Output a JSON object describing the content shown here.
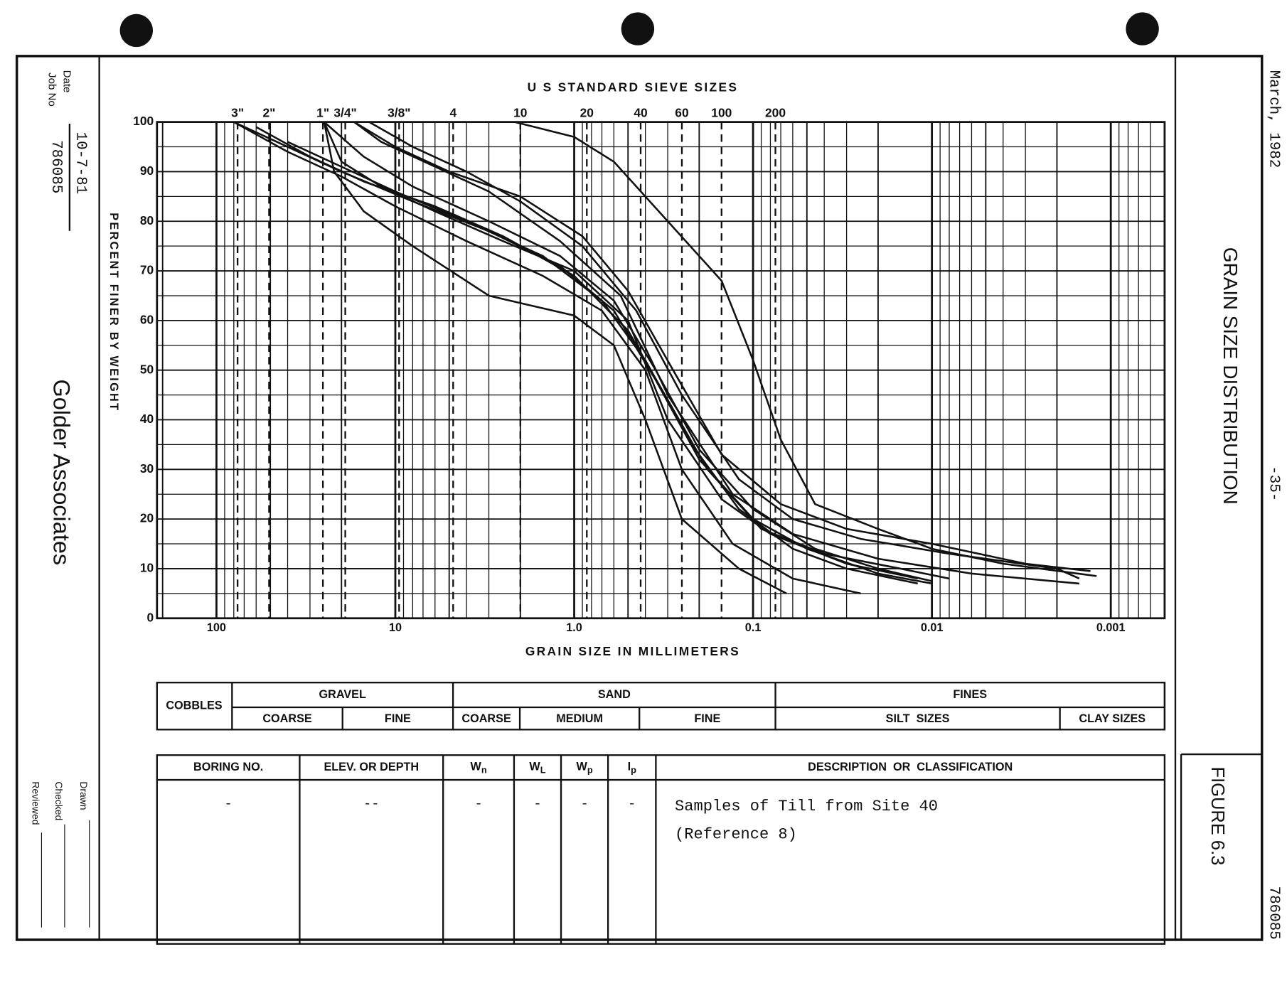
{
  "margin": {
    "date_stamp": "March, 1982",
    "page": "-35-",
    "number": "786085"
  },
  "sidebar": {
    "date_label": "Date",
    "date": "10-7-81",
    "job_label": "Job No",
    "job": "786085",
    "company": "Golder Associates",
    "drawn": "Drawn",
    "checked": "Checked",
    "reviewed": "Reviewed"
  },
  "figure": {
    "title": "GRAIN SIZE DISTRIBUTION",
    "number": "FIGURE 6.3"
  },
  "chart_data": {
    "type": "line",
    "title": "U S  STANDARD  SIEVE  SIZES",
    "x_label": "GRAIN SIZE IN MILLIMETERS",
    "y_label": "PERCENT FINER BY WEIGHT",
    "xscale": "log",
    "grid": true,
    "xlim": [
      215,
      0.0005
    ],
    "ylim": [
      0,
      100
    ],
    "xticks": [
      100,
      10,
      {
        "value": 1,
        "label": "1.0"
      },
      0.1,
      0.01,
      0.001
    ],
    "yticks": [
      0,
      10,
      20,
      30,
      40,
      50,
      60,
      70,
      80,
      90,
      100
    ],
    "sieve_ticks": [
      {
        "value": 76.2,
        "label": "3\""
      },
      {
        "value": 50.8,
        "label": "2\""
      },
      {
        "value": 25.4,
        "label": "1\""
      },
      {
        "value": 19.05,
        "label": "3/4\""
      },
      {
        "value": 9.525,
        "label": "3/8\""
      },
      {
        "value": 4.75,
        "label": "4"
      },
      {
        "value": 2.0,
        "label": "10"
      },
      {
        "value": 0.85,
        "label": "20"
      },
      {
        "value": 0.425,
        "label": "40"
      },
      {
        "value": 0.25,
        "label": "60"
      },
      {
        "value": 0.15,
        "label": "100"
      },
      {
        "value": 0.075,
        "label": "200"
      }
    ],
    "series": [
      {
        "color": "#111111",
        "x": [
          2.15,
          1.0,
          0.6,
          0.3,
          0.15,
          0.1,
          0.07,
          0.045,
          0.02,
          0.01,
          0.004,
          0.0012
        ],
        "values": [
          100,
          97,
          92,
          80,
          68,
          52,
          36,
          23,
          18,
          14,
          11,
          8.5
        ]
      },
      {
        "color": "#111111",
        "x": [
          80,
          40,
          20,
          10,
          4,
          1.5,
          0.7,
          0.4,
          0.25,
          0.13,
          0.06,
          0.025
        ],
        "values": [
          100,
          94,
          89,
          83,
          76,
          69,
          62,
          50,
          30,
          15,
          8,
          5
        ]
      },
      {
        "color": "#111111",
        "x": [
          25,
          22,
          15,
          8,
          3,
          1,
          0.6,
          0.4,
          0.25,
          0.12,
          0.065
        ],
        "values": [
          100,
          90,
          82,
          75,
          65,
          61,
          55,
          40,
          20,
          10,
          5
        ]
      },
      {
        "color": "#111111",
        "x": [
          17,
          12,
          6,
          3,
          1.2,
          0.55,
          0.3,
          0.13,
          0.06,
          0.02,
          0.006,
          0.0015
        ],
        "values": [
          100,
          96,
          91,
          86,
          76,
          65,
          45,
          25,
          17,
          12,
          9,
          7
        ]
      },
      {
        "color": "#111111",
        "x": [
          25,
          20,
          12,
          6,
          2.5,
          1,
          0.5,
          0.3,
          0.15,
          0.08,
          0.03,
          0.012
        ],
        "values": [
          100,
          92,
          87,
          82,
          76,
          70,
          60,
          40,
          24,
          17,
          11,
          8
        ]
      },
      {
        "color": "#111111",
        "x": [
          80,
          40,
          20,
          8,
          3,
          1.2,
          0.6,
          0.35,
          0.2,
          0.1,
          0.05,
          0.02,
          0.01
        ],
        "values": [
          100,
          95,
          90,
          84,
          78,
          71,
          62,
          48,
          32,
          20,
          14,
          9,
          7
        ]
      },
      {
        "color": "#111111",
        "x": [
          60,
          30,
          15,
          6,
          2.5,
          1,
          0.5,
          0.3,
          0.18,
          0.09,
          0.04,
          0.015,
          0.008
        ],
        "values": [
          99,
          93,
          88,
          83,
          77,
          69,
          58,
          44,
          30,
          18,
          13,
          10,
          8
        ]
      },
      {
        "color": "#111111",
        "x": [
          17,
          10,
          5,
          2,
          0.9,
          0.5,
          0.28,
          0.15,
          0.07,
          0.03,
          0.01,
          0.003,
          0.0013
        ],
        "values": [
          100,
          95,
          90,
          85,
          77,
          66,
          50,
          33,
          23,
          18,
          15,
          11,
          9.5
        ]
      },
      {
        "color": "#111111",
        "x": [
          25,
          15,
          8,
          3,
          1.2,
          0.6,
          0.35,
          0.2,
          0.1,
          0.045,
          0.02,
          0.01
        ],
        "values": [
          100,
          93,
          87,
          80,
          73,
          64,
          50,
          34,
          22,
          14,
          10,
          7.5
        ]
      },
      {
        "color": "#111111",
        "x": [
          14,
          8,
          4,
          2,
          0.9,
          0.45,
          0.25,
          0.12,
          0.06,
          0.025,
          0.008,
          0.002,
          0.0015
        ],
        "values": [
          100,
          95,
          90,
          84,
          75,
          62,
          45,
          28,
          20,
          16,
          13,
          10,
          8
        ]
      },
      {
        "color": "#111111",
        "x": [
          40,
          20,
          10,
          4,
          1.5,
          0.7,
          0.4,
          0.22,
          0.12,
          0.06,
          0.03,
          0.012
        ],
        "values": [
          96,
          91,
          86,
          80,
          73,
          64,
          52,
          35,
          22,
          14,
          10,
          7
        ]
      }
    ]
  },
  "classification": {
    "cobbles": "COBBLES",
    "groups": [
      {
        "label": "GRAVEL",
        "subs": [
          "COARSE",
          "FINE"
        ]
      },
      {
        "label": "SAND",
        "subs": [
          "COARSE",
          "MEDIUM",
          "FINE"
        ]
      },
      {
        "label": "FINES",
        "subs": [
          "SILT  SIZES",
          "CLAY SIZES"
        ]
      }
    ]
  },
  "table": {
    "headers": [
      "BORING NO.",
      "ELEV. OR DEPTH",
      {
        "base": "W",
        "sub": "n"
      },
      {
        "base": "W",
        "sub": "L"
      },
      {
        "base": "W",
        "sub": "p"
      },
      {
        "base": "I",
        "sub": "p"
      },
      "DESCRIPTION  OR  CLASSIFICATION"
    ],
    "row": [
      "-",
      "--",
      "-",
      "-",
      "-",
      "-"
    ],
    "description": [
      "Samples of Till from Site 40",
      "(Reference 8)"
    ]
  }
}
